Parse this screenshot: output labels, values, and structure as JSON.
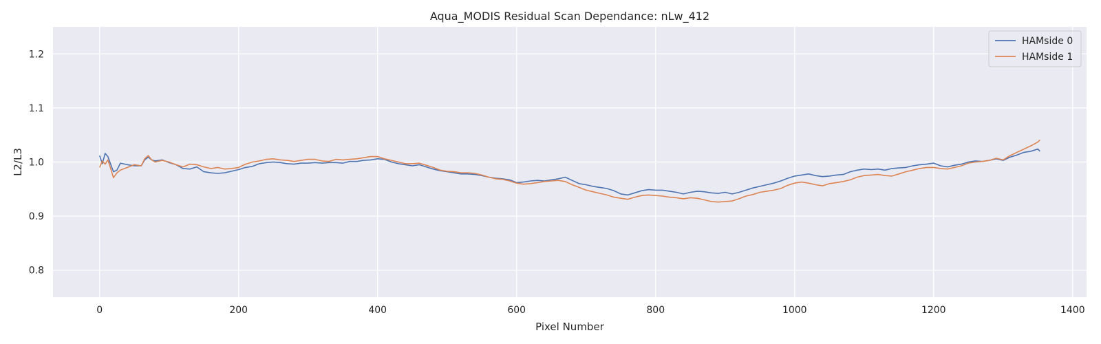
{
  "chart_data": {
    "type": "line",
    "title": "Aqua_MODIS Residual Scan Dependance: nLw_412",
    "xlabel": "Pixel Number",
    "ylabel": "L2/L3",
    "xlim": [
      -67,
      1420
    ],
    "ylim": [
      0.75,
      1.25
    ],
    "xticks": [
      0,
      200,
      400,
      600,
      800,
      1000,
      1200,
      1400
    ],
    "yticks": [
      0.8,
      0.9,
      1.0,
      1.1,
      1.2
    ],
    "xtick_labels": [
      "0",
      "200",
      "400",
      "600",
      "800",
      "1000",
      "1200",
      "1400"
    ],
    "ytick_labels": [
      "0.8",
      "0.9",
      "1.0",
      "1.1",
      "1.2"
    ],
    "grid": true,
    "legend_position": "top-right",
    "x": [
      0,
      4,
      8,
      12,
      16,
      20,
      25,
      30,
      40,
      50,
      60,
      65,
      70,
      75,
      80,
      90,
      100,
      110,
      120,
      130,
      140,
      150,
      160,
      170,
      180,
      190,
      200,
      210,
      220,
      230,
      240,
      250,
      260,
      270,
      280,
      290,
      300,
      310,
      320,
      330,
      340,
      350,
      360,
      370,
      380,
      390,
      400,
      410,
      420,
      430,
      440,
      450,
      460,
      470,
      480,
      490,
      500,
      510,
      520,
      530,
      540,
      550,
      560,
      570,
      580,
      590,
      600,
      610,
      620,
      630,
      640,
      650,
      660,
      670,
      680,
      690,
      700,
      710,
      720,
      730,
      740,
      750,
      760,
      770,
      780,
      790,
      800,
      810,
      820,
      830,
      840,
      850,
      860,
      870,
      880,
      890,
      900,
      910,
      920,
      930,
      940,
      950,
      960,
      970,
      980,
      990,
      1000,
      1010,
      1020,
      1030,
      1040,
      1050,
      1060,
      1070,
      1080,
      1090,
      1100,
      1110,
      1120,
      1130,
      1140,
      1150,
      1160,
      1170,
      1180,
      1190,
      1200,
      1210,
      1220,
      1230,
      1240,
      1250,
      1260,
      1270,
      1280,
      1290,
      1300,
      1310,
      1320,
      1330,
      1340,
      1350,
      1353
    ],
    "series": [
      {
        "name": "HAMside 0",
        "color": "#4c72b0",
        "values": [
          1.012,
          0.997,
          1.016,
          1.01,
          0.996,
          0.982,
          0.985,
          0.998,
          0.995,
          0.993,
          0.993,
          1.004,
          1.009,
          1.004,
          1.002,
          1.004,
          0.999,
          0.995,
          0.988,
          0.987,
          0.991,
          0.982,
          0.98,
          0.979,
          0.98,
          0.983,
          0.986,
          0.99,
          0.992,
          0.997,
          0.999,
          1.0,
          0.999,
          0.997,
          0.996,
          0.998,
          0.998,
          0.999,
          0.998,
          0.999,
          0.999,
          0.998,
          1.001,
          1.001,
          1.003,
          1.004,
          1.006,
          1.005,
          1.0,
          0.997,
          0.995,
          0.993,
          0.995,
          0.991,
          0.987,
          0.984,
          0.982,
          0.98,
          0.978,
          0.978,
          0.977,
          0.975,
          0.972,
          0.97,
          0.969,
          0.967,
          0.962,
          0.963,
          0.965,
          0.966,
          0.965,
          0.967,
          0.969,
          0.972,
          0.966,
          0.96,
          0.958,
          0.955,
          0.953,
          0.951,
          0.947,
          0.941,
          0.939,
          0.943,
          0.947,
          0.949,
          0.948,
          0.948,
          0.946,
          0.944,
          0.941,
          0.944,
          0.946,
          0.945,
          0.943,
          0.942,
          0.944,
          0.941,
          0.944,
          0.948,
          0.952,
          0.955,
          0.958,
          0.961,
          0.965,
          0.97,
          0.974,
          0.976,
          0.978,
          0.975,
          0.973,
          0.974,
          0.976,
          0.977,
          0.982,
          0.985,
          0.987,
          0.986,
          0.987,
          0.985,
          0.988,
          0.989,
          0.99,
          0.993,
          0.995,
          0.996,
          0.998,
          0.993,
          0.991,
          0.994,
          0.996,
          1.0,
          1.002,
          1.001,
          1.003,
          1.006,
          1.003,
          1.009,
          1.013,
          1.018,
          1.02,
          1.024,
          1.02
        ]
      },
      {
        "name": "HAMside 1",
        "color": "#dd8452",
        "values": [
          0.99,
          1.002,
          0.996,
          1.004,
          0.988,
          0.971,
          0.98,
          0.985,
          0.99,
          0.995,
          0.993,
          1.006,
          1.012,
          1.004,
          1.0,
          1.003,
          1.0,
          0.995,
          0.991,
          0.996,
          0.995,
          0.991,
          0.988,
          0.99,
          0.987,
          0.988,
          0.99,
          0.996,
          1.0,
          1.002,
          1.005,
          1.006,
          1.004,
          1.003,
          1.001,
          1.003,
          1.005,
          1.005,
          1.002,
          1.001,
          1.005,
          1.004,
          1.005,
          1.006,
          1.008,
          1.01,
          1.01,
          1.006,
          1.003,
          1.0,
          0.997,
          0.997,
          0.998,
          0.994,
          0.99,
          0.985,
          0.983,
          0.982,
          0.98,
          0.98,
          0.979,
          0.976,
          0.972,
          0.969,
          0.968,
          0.965,
          0.961,
          0.959,
          0.96,
          0.962,
          0.964,
          0.965,
          0.966,
          0.964,
          0.958,
          0.953,
          0.948,
          0.945,
          0.942,
          0.939,
          0.935,
          0.933,
          0.931,
          0.935,
          0.938,
          0.939,
          0.938,
          0.937,
          0.935,
          0.934,
          0.932,
          0.934,
          0.933,
          0.93,
          0.927,
          0.926,
          0.927,
          0.928,
          0.932,
          0.937,
          0.94,
          0.944,
          0.946,
          0.948,
          0.951,
          0.957,
          0.961,
          0.963,
          0.961,
          0.958,
          0.956,
          0.96,
          0.962,
          0.964,
          0.967,
          0.972,
          0.975,
          0.976,
          0.977,
          0.975,
          0.974,
          0.978,
          0.982,
          0.985,
          0.988,
          0.99,
          0.99,
          0.988,
          0.987,
          0.99,
          0.993,
          0.998,
          1.0,
          1.001,
          1.003,
          1.007,
          1.004,
          1.012,
          1.018,
          1.024,
          1.03,
          1.037,
          1.041
        ]
      }
    ]
  }
}
